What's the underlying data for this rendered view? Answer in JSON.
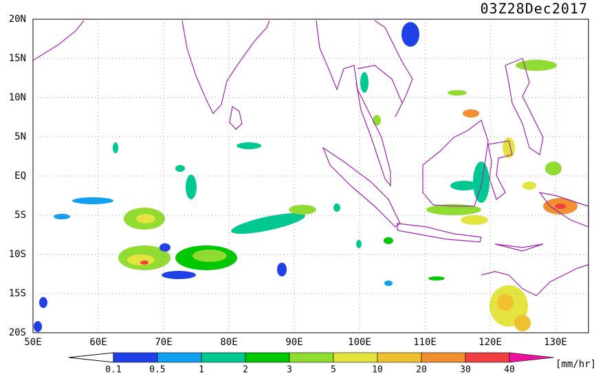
{
  "title": "03Z28Dec2017",
  "lat_labels": [
    "20N",
    "15N",
    "10N",
    "5N",
    "EQ",
    "5S",
    "10S",
    "15S",
    "20S"
  ],
  "lon_labels": [
    "50E",
    "60E",
    "70E",
    "80E",
    "90E",
    "100E",
    "110E",
    "120E",
    "130E"
  ],
  "colorbar": {
    "labels": [
      "0.1",
      "0.5",
      "1",
      "2",
      "3",
      "5",
      "10",
      "20",
      "30",
      "40"
    ],
    "colors": [
      "#2040e8",
      "#10a0f0",
      "#00c890",
      "#00c800",
      "#90dc30",
      "#e4e440",
      "#f0c030",
      "#f09030",
      "#f04040",
      "#f010a0"
    ],
    "unit": "[mm/hr]"
  }
}
